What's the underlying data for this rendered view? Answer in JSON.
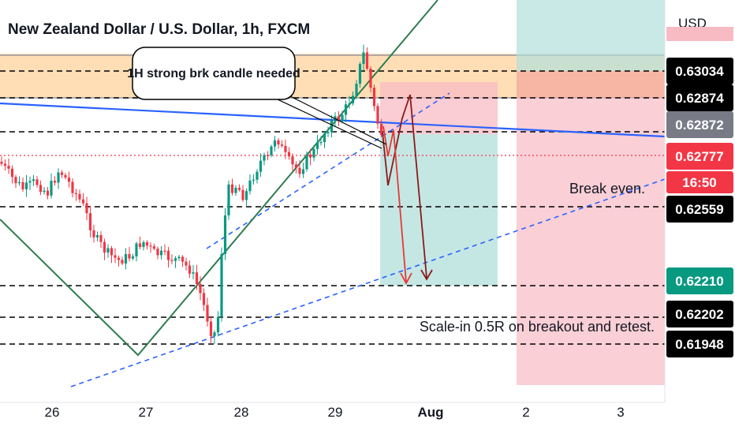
{
  "chart_data": {
    "type": "candlestick",
    "title": "New Zealand Dollar / U.S. Dollar, 1h, FXCM",
    "currency": "USD",
    "y_range": [
      0.6186,
      0.6362
    ],
    "x_tick_labels": [
      "26",
      "27",
      "28",
      "29",
      "Aug",
      "2",
      "3"
    ],
    "price_tags": [
      {
        "label": "0.63034",
        "bg": "#000000",
        "fg": "#ffffff"
      },
      {
        "label": "0.62874",
        "bg": "#000000",
        "fg": "#ffffff"
      },
      {
        "label": "0.62872",
        "bg": "#787b86",
        "fg": "#ffffff"
      },
      {
        "label": "0.62777",
        "bg": "#f23645",
        "fg": "#ffffff"
      },
      {
        "label": "16:50",
        "bg": "#f23645",
        "fg": "#ffffff"
      },
      {
        "label": "0.62559",
        "bg": "#000000",
        "fg": "#ffffff"
      },
      {
        "label": "0.62210",
        "bg": "#089981",
        "fg": "#ffffff"
      },
      {
        "label": "0.62202",
        "bg": "#000000",
        "fg": "#ffffff"
      },
      {
        "label": "0.61948",
        "bg": "#000000",
        "fg": "#ffffff"
      }
    ],
    "levels": {
      "supply_zone": [
        0.6287,
        0.6308
      ],
      "dashed": [
        0.6306,
        0.63034,
        0.62874,
        0.62777,
        0.62559,
        0.62202,
        0.61948
      ],
      "current_price": 0.62777
    },
    "annotations": {
      "callout": "1H strong brk candle needed",
      "break_even": "Break even.",
      "scale_in": "Scale-in 0.5R on breakout and retest."
    },
    "colors": {
      "up": "#089981",
      "down": "#f23645",
      "zone": "#ffd8a8",
      "trend_blue": "#2962ff",
      "wedge_green": "#2e7d4f",
      "tp_zone": "#b2dfdb",
      "sl_zone": "#f8bbc4"
    }
  }
}
